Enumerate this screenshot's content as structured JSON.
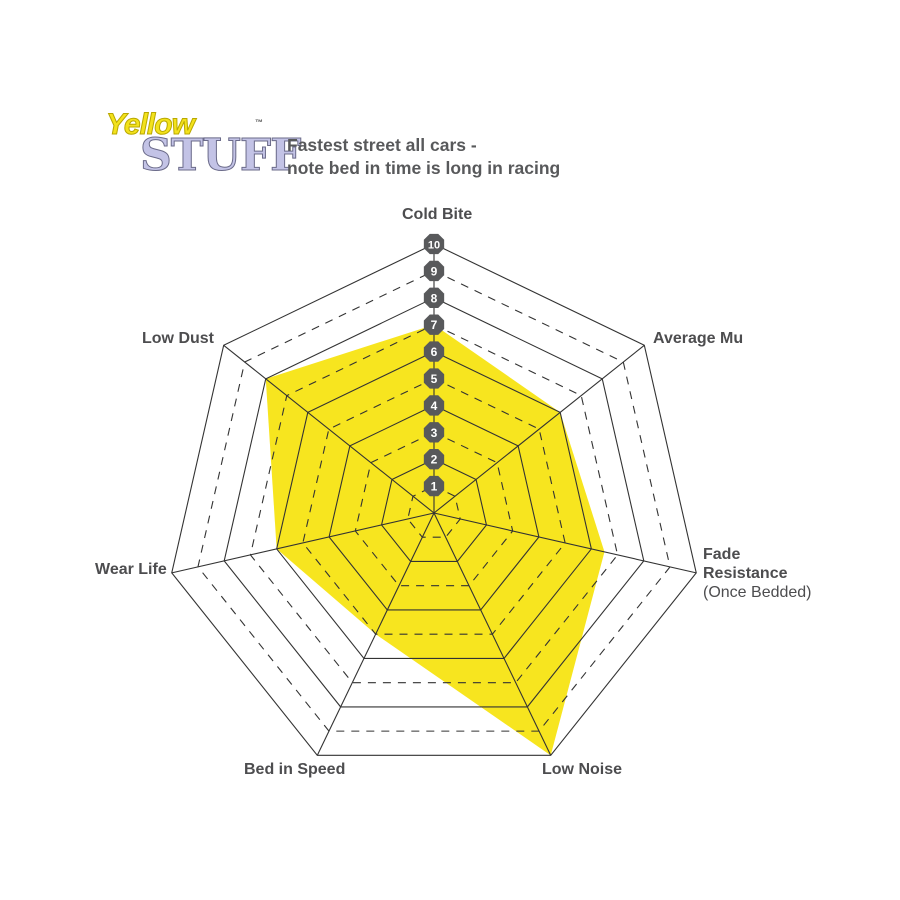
{
  "logo": {
    "line1": "Yellow",
    "line2": "STUFF",
    "tm": "™"
  },
  "subtitle": {
    "line1": "Fastest street all cars -",
    "line2": "note bed in time is long in racing"
  },
  "chart_data": {
    "type": "radar",
    "title": "",
    "axes": [
      "Cold Bite",
      "Average Mu",
      "Fade Resistance (Once Bedded)",
      "Low Noise",
      "Bed in Speed",
      "Wear Life",
      "Low Dust"
    ],
    "axis_labels": {
      "cold_bite": "Cold Bite",
      "average_mu": "Average Mu",
      "fade_resistance": "Fade",
      "fade_resistance_2": "Resistance",
      "fade_resistance_note": "(Once Bedded)",
      "low_noise": "Low Noise",
      "bed_in_speed": "Bed in Speed",
      "wear_life": "Wear Life",
      "low_dust": "Low Dust"
    },
    "values": [
      7,
      6,
      6.5,
      10,
      5,
      6,
      8
    ],
    "scale": {
      "min": 0,
      "max": 10,
      "ticks": [
        "1",
        "2",
        "3",
        "4",
        "5",
        "6",
        "7",
        "8",
        "9",
        "10"
      ]
    },
    "grid": "solid at even values, dashed at odd values",
    "fill_color": "#f7e51f",
    "grid_color": "#333333",
    "tick_marker_color": "#58595b"
  }
}
